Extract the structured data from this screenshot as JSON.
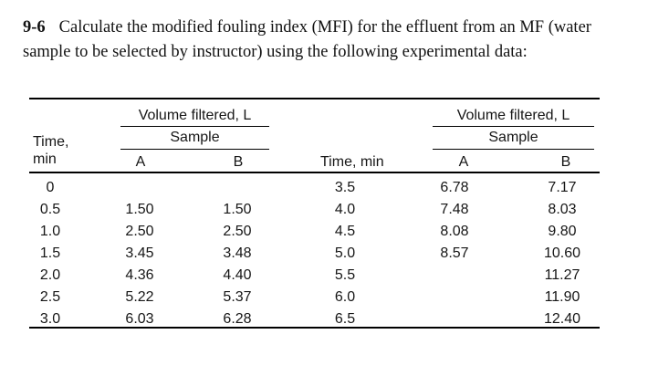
{
  "problem": {
    "number": "9-6",
    "text_line1": "Calculate the modified fouling index (MFI) for the effluent from an MF (water",
    "text_line2": "sample to be selected by instructor) using the following experimental data:"
  },
  "table": {
    "left": {
      "time_header_line1": "Time,",
      "time_header_line2": "min",
      "group_header": "Volume filtered, L",
      "subgroup_header": "Sample",
      "col_a": "A",
      "col_b": "B",
      "rows": [
        {
          "time": "0",
          "a": "",
          "b": ""
        },
        {
          "time": "0.5",
          "a": "1.50",
          "b": "1.50"
        },
        {
          "time": "1.0",
          "a": "2.50",
          "b": "2.50"
        },
        {
          "time": "1.5",
          "a": "3.45",
          "b": "3.48"
        },
        {
          "time": "2.0",
          "a": "4.36",
          "b": "4.40"
        },
        {
          "time": "2.5",
          "a": "5.22",
          "b": "5.37"
        },
        {
          "time": "3.0",
          "a": "6.03",
          "b": "6.28"
        }
      ]
    },
    "right": {
      "time_header": "Time, min",
      "group_header": "Volume filtered, L",
      "subgroup_header": "Sample",
      "col_a": "A",
      "col_b": "B",
      "rows": [
        {
          "time": "3.5",
          "a": "6.78",
          "b": "7.17"
        },
        {
          "time": "4.0",
          "a": "7.48",
          "b": "8.03"
        },
        {
          "time": "4.5",
          "a": "8.08",
          "b": "9.80"
        },
        {
          "time": "5.0",
          "a": "8.57",
          "b": "10.60"
        },
        {
          "time": "5.5",
          "a": "",
          "b": "11.27"
        },
        {
          "time": "6.0",
          "a": "",
          "b": "11.90"
        },
        {
          "time": "6.5",
          "a": "",
          "b": "12.40"
        }
      ]
    }
  },
  "colors": {
    "rule": "#000000",
    "text": "#141414",
    "background": "#ffffff"
  }
}
